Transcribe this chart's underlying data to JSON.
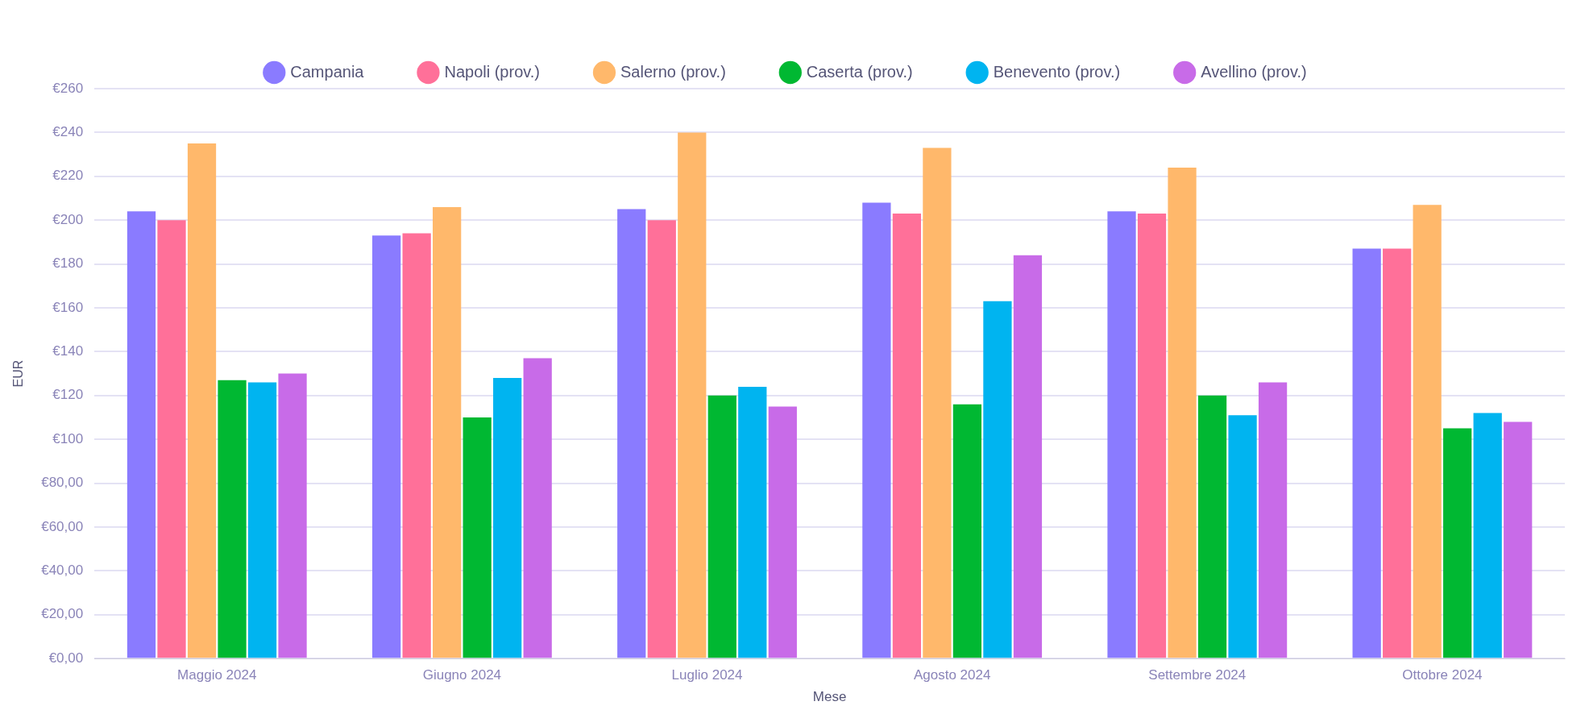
{
  "chart_data": {
    "type": "bar",
    "xlabel": "Mese",
    "ylabel": "EUR",
    "categories": [
      "Maggio 2024",
      "Giugno 2024",
      "Luglio 2024",
      "Agosto 2024",
      "Settembre 2024",
      "Ottobre 2024"
    ],
    "series": [
      {
        "name": "Campania",
        "color": "#8a7bff",
        "values": [
          204,
          193,
          205,
          208,
          204,
          187
        ]
      },
      {
        "name": "Napoli (prov.)",
        "color": "#ff7099",
        "values": [
          200,
          194,
          200,
          203,
          203,
          187
        ]
      },
      {
        "name": "Salerno (prov.)",
        "color": "#ffb86b",
        "values": [
          235,
          206,
          240,
          233,
          224,
          207
        ]
      },
      {
        "name": "Caserta (prov.)",
        "color": "#00b832",
        "values": [
          127,
          110,
          120,
          116,
          120,
          105
        ]
      },
      {
        "name": "Benevento (prov.)",
        "color": "#00b4f0",
        "values": [
          126,
          128,
          124,
          163,
          111,
          112
        ]
      },
      {
        "name": "Avellino (prov.)",
        "color": "#c86be8",
        "values": [
          130,
          137,
          115,
          184,
          126,
          108
        ]
      }
    ],
    "ylim": [
      0,
      260
    ],
    "yticks": [
      {
        "value": 0,
        "label": "€0,00"
      },
      {
        "value": 20,
        "label": "€20,00"
      },
      {
        "value": 40,
        "label": "€40,00"
      },
      {
        "value": 60,
        "label": "€60,00"
      },
      {
        "value": 80,
        "label": "€80,00"
      },
      {
        "value": 100,
        "label": "€100"
      },
      {
        "value": 120,
        "label": "€120"
      },
      {
        "value": 140,
        "label": "€140"
      },
      {
        "value": 160,
        "label": "€160"
      },
      {
        "value": 180,
        "label": "€180"
      },
      {
        "value": 200,
        "label": "€200"
      },
      {
        "value": 220,
        "label": "€220"
      },
      {
        "value": 240,
        "label": "€240"
      },
      {
        "value": 260,
        "label": "€260"
      }
    ],
    "grid": "y",
    "legend": "top"
  }
}
